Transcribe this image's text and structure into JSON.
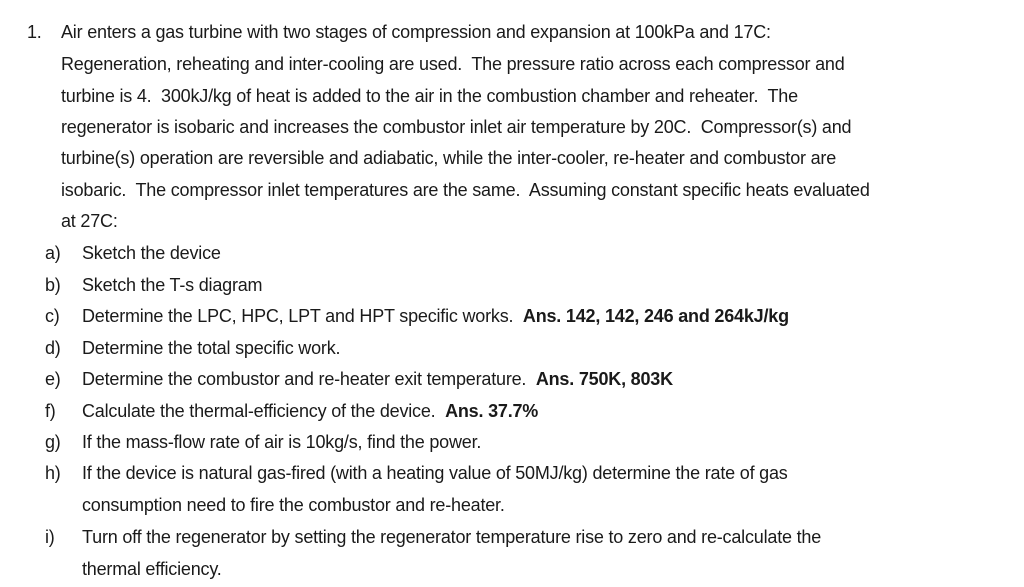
{
  "problem": {
    "number": "1.",
    "lines": [
      "Air enters a gas turbine with two stages of compression and expansion at 100kPa and 17C:",
      "Regeneration, reheating and inter-cooling are used.  The pressure ratio across each compressor and",
      "turbine is 4.  300kJ/kg of heat is added to the air in the combustion chamber and reheater.  The",
      "regenerator is isobaric and increases the combustor inlet air temperature by 20C.  Compressor(s) and",
      "turbine(s) operation are reversible and adiabatic, while the inter-cooler, re-heater and combustor are",
      "isobaric.  The compressor inlet temperatures are the same.  Assuming constant specific heats evaluated",
      "at 27C:"
    ]
  },
  "items": [
    {
      "letter": "a)",
      "text": "Sketch the device",
      "answer": ""
    },
    {
      "letter": "b)",
      "text": "Sketch the T-s diagram",
      "answer": ""
    },
    {
      "letter": "c)",
      "text": "Determine the LPC, HPC, LPT and HPT specific works.  ",
      "answer": "Ans. 142, 142, 246 and 264kJ/kg"
    },
    {
      "letter": "d)",
      "text": "Determine the total specific work.",
      "answer": ""
    },
    {
      "letter": "e)",
      "text": "Determine the combustor and re-heater exit temperature.  ",
      "answer": "Ans. 750K, 803K"
    },
    {
      "letter": "f)",
      "text": "Calculate the thermal-efficiency of the device.  ",
      "answer": "Ans. 37.7%"
    },
    {
      "letter": "g)",
      "text": "If the mass-flow rate of air is 10kg/s, find the power.",
      "answer": ""
    },
    {
      "letter": "h)",
      "text": "If the device is natural gas-fired (with a heating value of 50MJ/kg) determine the rate of gas",
      "text2": "consumption need to fire the combustor and re-heater.",
      "answer": ""
    },
    {
      "letter": "i)",
      "text": "Turn off the regenerator by setting the regenerator temperature rise to zero and re-calculate the",
      "text2": "thermal efficiency.",
      "answer": ""
    }
  ]
}
